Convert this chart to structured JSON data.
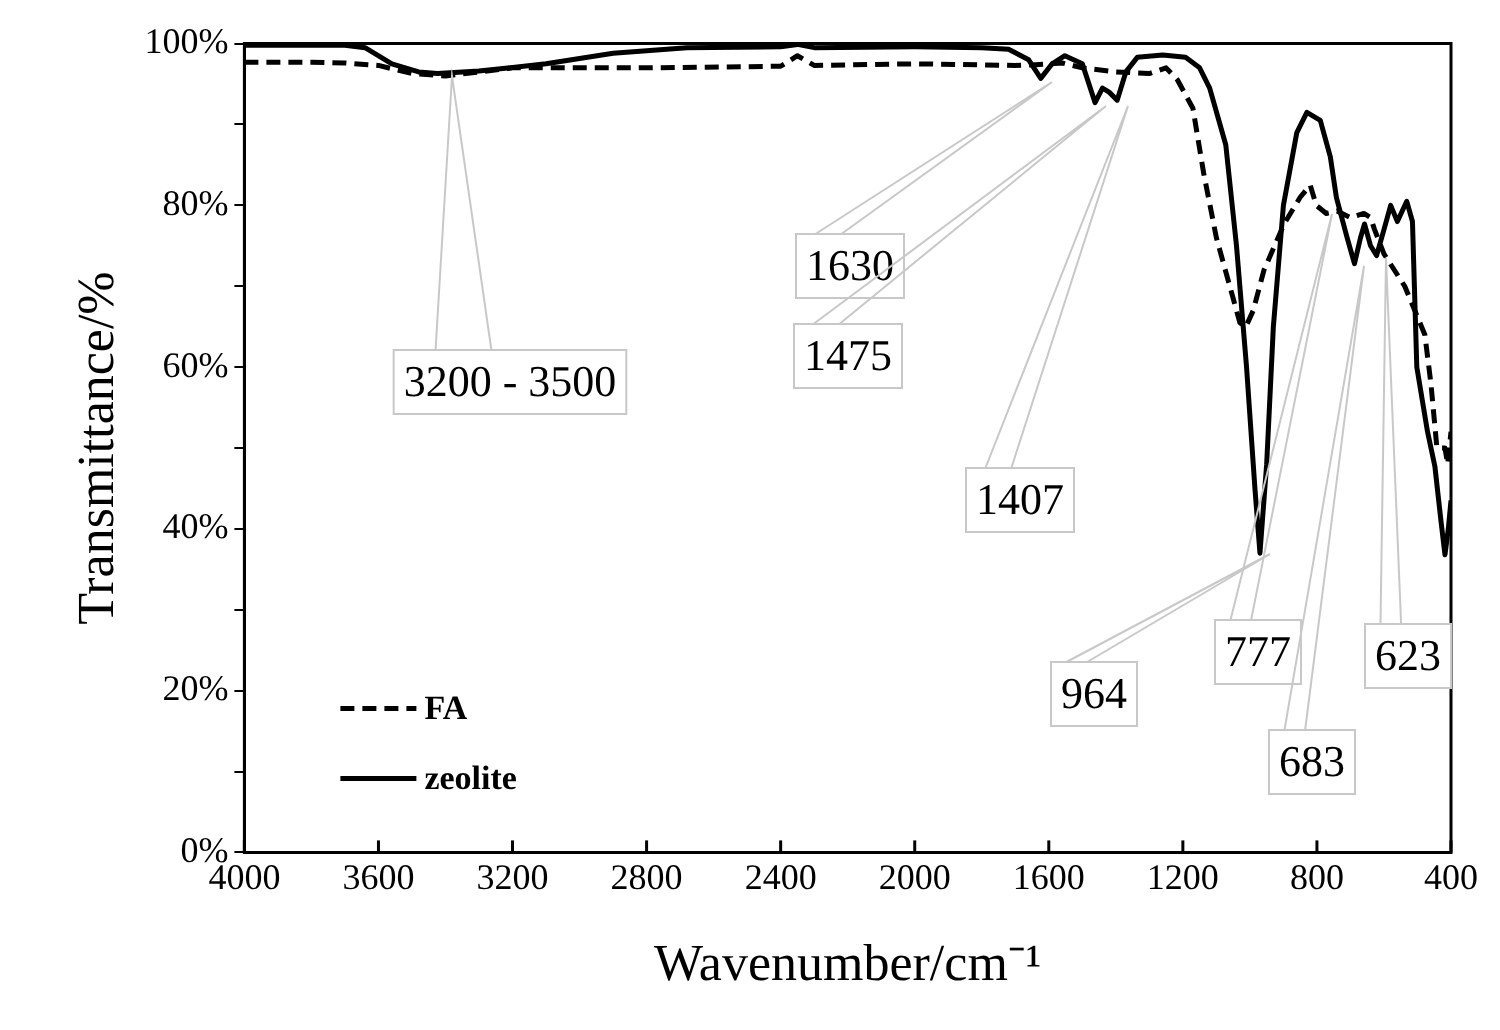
{
  "chart_data": {
    "type": "line",
    "xlabel": "Wavenumber/cm⁻¹",
    "ylabel": "Transmittance/%",
    "xlim": [
      4000,
      400
    ],
    "xticks": [
      4000,
      3600,
      3200,
      2800,
      2400,
      2000,
      1600,
      1200,
      800,
      400
    ],
    "ylim": [
      0,
      100
    ],
    "yticks": [
      {
        "value": 0,
        "label": "0%"
      },
      {
        "value": 10,
        "label": null
      },
      {
        "value": 20,
        "label": "20%"
      },
      {
        "value": 30,
        "label": null
      },
      {
        "value": 40,
        "label": "40%"
      },
      {
        "value": 50,
        "label": null
      },
      {
        "value": 60,
        "label": "60%"
      },
      {
        "value": 70,
        "label": null
      },
      {
        "value": 80,
        "label": "80%"
      },
      {
        "value": 90,
        "label": null
      },
      {
        "value": 100,
        "label": "100%"
      }
    ],
    "grid": false,
    "legend": "bottom left",
    "marker": "none",
    "series": [
      {
        "name": "FA",
        "color": "#000000",
        "line_style": "dashed",
        "x": [
          4000,
          3800,
          3700,
          3600,
          3500,
          3400,
          3300,
          3200,
          2800,
          2400,
          2350,
          2300,
          2000,
          1700,
          1640,
          1560,
          1500,
          1400,
          1300,
          1250,
          1216,
          1170,
          1138,
          1100,
          1060,
          1030,
          1012,
          990,
          958,
          898,
          850,
          820,
          802,
          772,
          740,
          700,
          660,
          640,
          628,
          600,
          538,
          478,
          460,
          442,
          418,
          410,
          400
        ],
        "values": [
          97.7,
          97.7,
          97.6,
          97.3,
          96.3,
          96,
          96.5,
          97,
          97,
          97.2,
          98.5,
          97.3,
          97.5,
          97.3,
          97.4,
          97.6,
          97,
          96.5,
          96.3,
          97,
          95.5,
          92,
          84,
          76,
          70,
          65.5,
          65,
          67,
          72,
          77.7,
          81,
          82.5,
          80,
          79,
          79.3,
          78.5,
          79,
          78.5,
          77,
          74,
          70,
          64,
          58,
          50,
          50,
          48,
          52
        ]
      },
      {
        "name": "zeolite",
        "color": "#000000",
        "line_style": "solid",
        "x": [
          4000,
          3700,
          3640,
          3560,
          3480,
          3424,
          3300,
          3100,
          2900,
          2680,
          2400,
          2350,
          2300,
          2000,
          1800,
          1720,
          1660,
          1624,
          1590,
          1552,
          1500,
          1462,
          1440,
          1420,
          1396,
          1370,
          1336,
          1260,
          1192,
          1150,
          1120,
          1072,
          1040,
          1010,
          985,
          970,
          950,
          930,
          900,
          860,
          830,
          790,
          760,
          742,
          710,
          688,
          670,
          658,
          640,
          622,
          600,
          580,
          560,
          532,
          515,
          502,
          470,
          448,
          430,
          418,
          408,
          400
        ],
        "values": [
          99.8,
          99.8,
          99.5,
          97.5,
          96.5,
          96.3,
          96.6,
          97.5,
          98.8,
          99.5,
          99.6,
          99.9,
          99.5,
          99.6,
          99.5,
          99.3,
          98,
          95.7,
          97.5,
          98.5,
          97.5,
          92.7,
          94.5,
          94,
          93,
          96.5,
          98.3,
          98.6,
          98.3,
          97,
          94.5,
          87.5,
          75,
          60,
          45,
          37,
          48,
          65,
          80,
          89,
          91.5,
          90.5,
          86,
          81,
          76,
          72.8,
          76,
          77.7,
          75,
          73.8,
          77,
          80,
          78,
          80.5,
          78,
          60,
          52,
          47.7,
          41,
          36.8,
          40,
          43.5
        ]
      }
    ],
    "annotations": [
      "3200 - 3500",
      "1630",
      "1475",
      "1407",
      "964",
      "777",
      "683",
      "623"
    ]
  }
}
